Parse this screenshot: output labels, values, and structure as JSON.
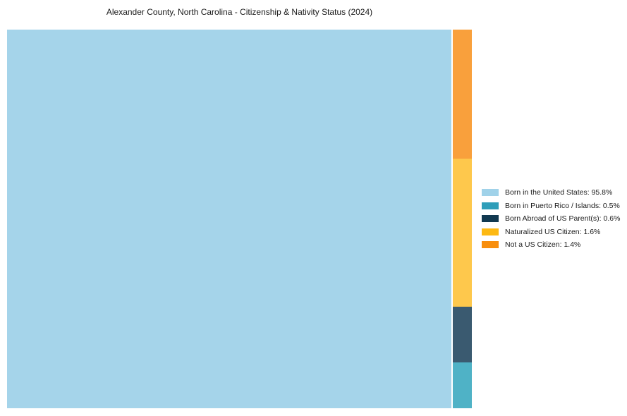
{
  "chart_data": {
    "type": "treemap",
    "title": "Alexander County, North Carolina - Citizenship & Nativity Status (2024)",
    "unit": "%",
    "background_color": "#FFFFFF",
    "legend_position": "right-center",
    "series": [
      {
        "label": "Born in the United States",
        "value_pct": 95.8,
        "legend_text": "Born in the United States: 95.8%",
        "swatch_color": "#A0D2E9",
        "fill_color": "#A5D4EA"
      },
      {
        "label": "Born in Puerto Rico / Islands",
        "value_pct": 0.5,
        "legend_text": "Born in Puerto Rico / Islands: 0.5%",
        "swatch_color": "#2E9EB9",
        "fill_color": "#4FB2C6"
      },
      {
        "label": "Born Abroad of US Parent(s)",
        "value_pct": 0.6,
        "legend_text": "Born Abroad of US Parent(s): 0.6%",
        "swatch_color": "#113950",
        "fill_color": "#3A5A70"
      },
      {
        "label": "Naturalized US Citizen",
        "value_pct": 1.6,
        "legend_text": "Naturalized US Citizen: 1.6%",
        "swatch_color": "#FDB913",
        "fill_color": "#FEC84C"
      },
      {
        "label": "Not a US Citizen",
        "value_pct": 1.4,
        "legend_text": "Not a US Citizen: 1.4%",
        "swatch_color": "#F88E0D",
        "fill_color": "#F9A03C"
      }
    ]
  }
}
